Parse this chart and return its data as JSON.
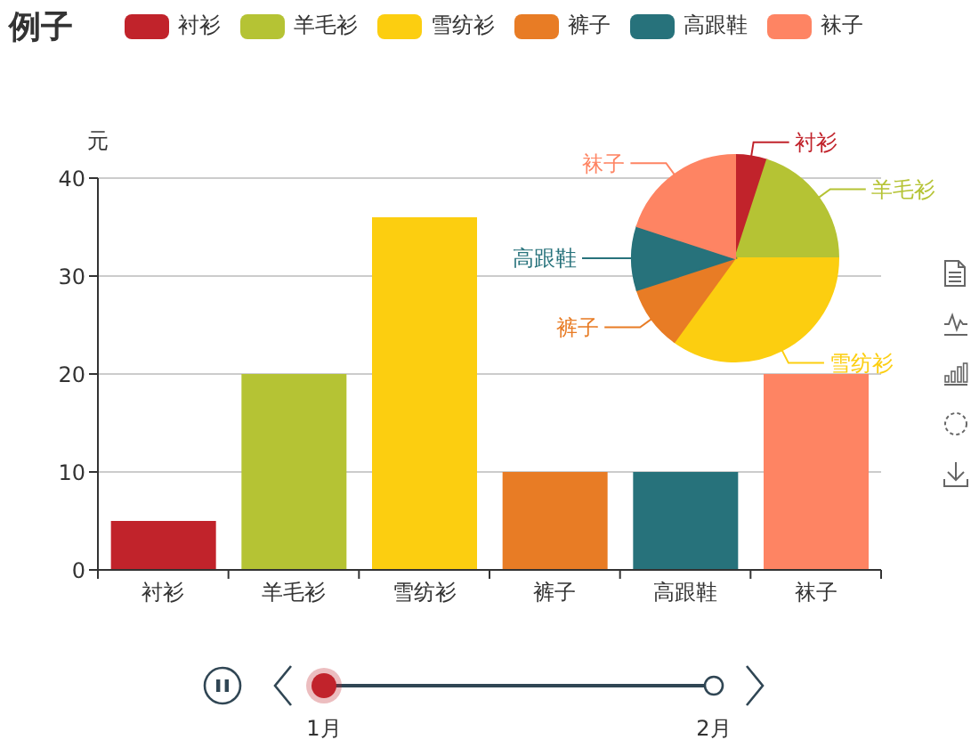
{
  "chart_data": [
    {
      "type": "bar",
      "title": "例子",
      "categories": [
        "衬衫",
        "羊毛衫",
        "雪纺衫",
        "裤子",
        "高跟鞋",
        "袜子"
      ],
      "values": [
        5,
        20,
        36,
        10,
        10,
        20
      ],
      "colors": [
        "#c1232b",
        "#b5c334",
        "#fcce10",
        "#e87c25",
        "#27727b",
        "#fe8463"
      ],
      "ylabel": "元",
      "ylim": [
        0,
        40
      ],
      "yticks": [
        0,
        10,
        20,
        30,
        40
      ],
      "grid": "y",
      "annotations": [
        "1月",
        "2月"
      ]
    },
    {
      "type": "pie",
      "categories": [
        "衬衫",
        "羊毛衫",
        "雪纺衫",
        "裤子",
        "高跟鞋",
        "袜子"
      ],
      "values": [
        5,
        20,
        35,
        10,
        10,
        20
      ],
      "colors": [
        "#c1232b",
        "#b5c334",
        "#fcce10",
        "#e87c25",
        "#27727b",
        "#fe8463"
      ],
      "legend": "top"
    }
  ]
}
